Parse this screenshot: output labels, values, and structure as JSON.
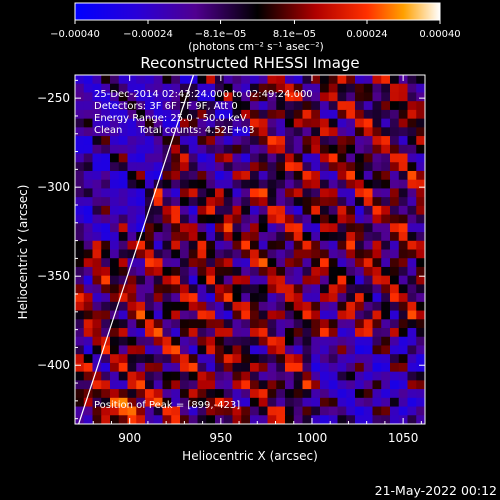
{
  "chart_data": {
    "type": "heatmap",
    "title": "Reconstructed RHESSI Image",
    "xlabel": "Heliocentric X (arcsec)",
    "ylabel": "Heliocentric Y (arcsec)",
    "xlim": [
      870,
      1062
    ],
    "ylim": [
      -433,
      -237
    ],
    "x_ticks": [
      900,
      950,
      1000,
      1050
    ],
    "x_tick_labels": [
      "900",
      "950",
      "1000",
      "1050"
    ],
    "y_ticks": [
      -250,
      -300,
      -350,
      -400
    ],
    "y_tick_labels": [
      "−250",
      "−300",
      "−350",
      "−400"
    ],
    "colorbar": {
      "min": -0.0004,
      "max": 0.0004,
      "ticks": [
        -0.0004,
        -0.00024,
        -8.1e-05,
        8.1e-05,
        0.00024,
        0.0004
      ],
      "tick_labels": [
        "−0.00040",
        "−0.00024",
        "−8.1e−05",
        "8.1e−05",
        "0.00024",
        "0.00040"
      ],
      "units_label": "(photons cm⁻² s⁻¹ asec⁻²)",
      "colormap": "red-temperature",
      "stops": [
        {
          "v": 0.0,
          "color": "#0000ff"
        },
        {
          "v": 0.17,
          "color": "#2800d8"
        },
        {
          "v": 0.33,
          "color": "#500090"
        },
        {
          "v": 0.5,
          "color": "#000000"
        },
        {
          "v": 0.66,
          "color": "#b00000"
        },
        {
          "v": 0.8,
          "color": "#ff3000"
        },
        {
          "v": 0.9,
          "color": "#ffa000"
        },
        {
          "v": 1.0,
          "color": "#ffffff"
        }
      ]
    },
    "annotations": [
      "25-Dec-2014 02:43:24.000 to 02:49:24.000",
      "Detectors: 3F 6F 7F 9F, Att 0",
      "Energy Range: 25.0 - 50.0 keV",
      "Clean     Total counts: 4.52E+03"
    ],
    "peak_annotation": "Position of Peak = [899,-423]",
    "timestamp": "21-May-2022 00:12",
    "limb_line": {
      "x": [
        872,
        935
      ],
      "y": [
        -433,
        -237
      ],
      "color": "#ffffff"
    },
    "peak_position": {
      "x": 899,
      "y": -423
    },
    "grid": false
  }
}
